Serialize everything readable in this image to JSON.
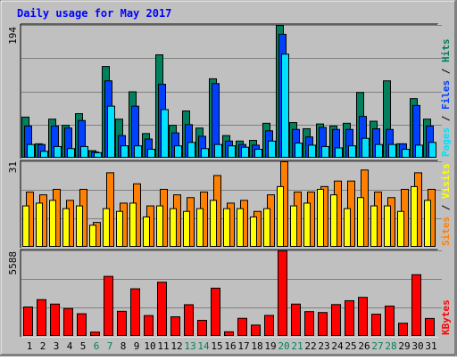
{
  "title": "Daily usage for May 2017",
  "chart_data": [
    {
      "type": "bar",
      "panel": "pages-files-hits",
      "categories": [
        "1",
        "2",
        "3",
        "4",
        "5",
        "6",
        "7",
        "8",
        "9",
        "10",
        "11",
        "12",
        "13",
        "14",
        "15",
        "16",
        "17",
        "18",
        "19",
        "20",
        "21",
        "22",
        "23",
        "24",
        "25",
        "26",
        "27",
        "28",
        "29",
        "30",
        "31"
      ],
      "weekend_days": [
        "6",
        "7",
        "13",
        "14",
        "20",
        "21",
        "27",
        "28"
      ],
      "max_label": "194",
      "ylim": [
        0,
        194
      ],
      "series": [
        {
          "name": "Hits",
          "color": "#00805c",
          "values": [
            60,
            21,
            57,
            48,
            65,
            11,
            134,
            57,
            97,
            36,
            151,
            48,
            69,
            44,
            116,
            33,
            25,
            26,
            51,
            194,
            52,
            43,
            50,
            47,
            51,
            96,
            54,
            113,
            21,
            87,
            57
          ]
        },
        {
          "name": "Files",
          "color": "#0040ff",
          "values": [
            47,
            20,
            47,
            44,
            55,
            9,
            113,
            33,
            76,
            28,
            108,
            37,
            49,
            32,
            109,
            25,
            20,
            19,
            40,
            181,
            42,
            31,
            45,
            42,
            42,
            61,
            43,
            42,
            21,
            77,
            47
          ]
        },
        {
          "name": "Pages",
          "color": "#00e0ff",
          "values": [
            20,
            10,
            17,
            14,
            17,
            8,
            76,
            18,
            18,
            13,
            71,
            18,
            23,
            14,
            20,
            18,
            16,
            13,
            25,
            152,
            22,
            19,
            17,
            15,
            18,
            29,
            20,
            20,
            13,
            19,
            23
          ]
        }
      ],
      "axis_labels": [
        "Pages",
        "Files",
        "Hits"
      ]
    },
    {
      "type": "bar",
      "panel": "sites-visits",
      "categories": [
        "1",
        "2",
        "3",
        "4",
        "5",
        "6",
        "7",
        "8",
        "9",
        "10",
        "11",
        "12",
        "13",
        "14",
        "15",
        "16",
        "17",
        "18",
        "19",
        "20",
        "21",
        "22",
        "23",
        "24",
        "25",
        "26",
        "27",
        "28",
        "29",
        "30",
        "31"
      ],
      "max_label": "31",
      "ylim": [
        0,
        31
      ],
      "series": [
        {
          "name": "Visits",
          "color": "#ff8000",
          "values": [
            20,
            19,
            21,
            17,
            21,
            9,
            27,
            16,
            23,
            15,
            21,
            19,
            18,
            20,
            26,
            16,
            17,
            13,
            19,
            31,
            20,
            20,
            22,
            24,
            24,
            28,
            20,
            18,
            21,
            27,
            21
          ]
        },
        {
          "name": "Sites",
          "color": "#ffff00",
          "values": [
            15,
            16,
            17,
            14,
            15,
            8,
            14,
            13,
            16,
            11,
            15,
            14,
            13,
            14,
            17,
            14,
            14,
            11,
            14,
            22,
            15,
            16,
            21,
            19,
            14,
            18,
            15,
            15,
            13,
            22,
            17
          ]
        }
      ],
      "axis_labels": [
        "Sites",
        "Visits"
      ]
    },
    {
      "type": "bar",
      "panel": "kbytes",
      "categories": [
        "1",
        "2",
        "3",
        "4",
        "5",
        "6",
        "7",
        "8",
        "9",
        "10",
        "11",
        "12",
        "13",
        "14",
        "15",
        "16",
        "17",
        "18",
        "19",
        "20",
        "21",
        "22",
        "23",
        "24",
        "25",
        "26",
        "27",
        "28",
        "29",
        "30",
        "31"
      ],
      "max_label": "5588",
      "ylim": [
        0,
        5588
      ],
      "series": [
        {
          "name": "KBytes",
          "color": "#ff0000",
          "values": [
            1920,
            2400,
            2110,
            1820,
            1480,
            280,
            3920,
            1640,
            3110,
            1360,
            3540,
            1280,
            2070,
            1050,
            3150,
            300,
            1180,
            740,
            1370,
            5588,
            2110,
            1620,
            1560,
            2080,
            2330,
            2550,
            1450,
            1980,
            860,
            4030,
            1170
          ]
        }
      ],
      "axis_labels": [
        "KBytes"
      ]
    }
  ]
}
